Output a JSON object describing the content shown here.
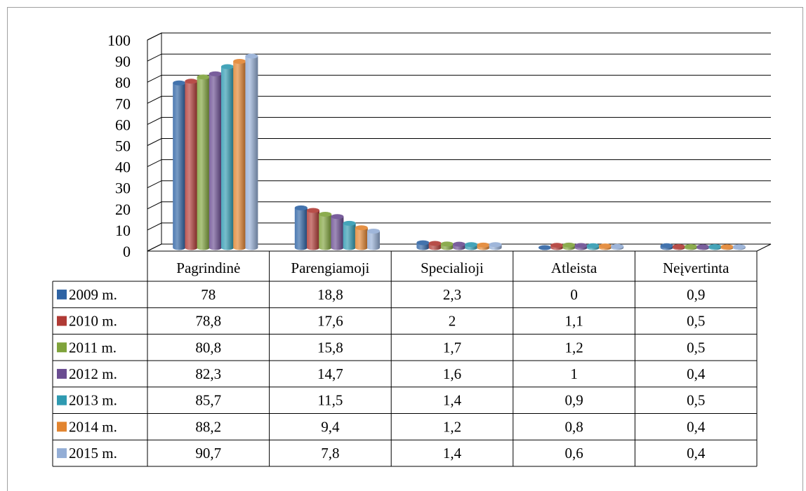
{
  "chart_data": {
    "type": "bar",
    "three_d": true,
    "categories": [
      "Pagrindinė",
      "Parengiamoji",
      "Specialioji",
      "Atleista",
      "Neįvertinta"
    ],
    "series": [
      {
        "name": "2009 m.",
        "color": "#2E63A4",
        "values": [
          "78",
          "18,8",
          "2,3",
          "0",
          "0,9"
        ]
      },
      {
        "name": "2010 m.",
        "color": "#B03A35",
        "values": [
          "78,8",
          "17,6",
          "2",
          "1,1",
          "0,5"
        ]
      },
      {
        "name": "2011 m.",
        "color": "#7FA33B",
        "values": [
          "80,8",
          "15,8",
          "1,7",
          "1,2",
          "0,5"
        ]
      },
      {
        "name": "2012 m.",
        "color": "#6A4C91",
        "values": [
          "82,3",
          "14,7",
          "1,6",
          "1",
          "0,4"
        ]
      },
      {
        "name": "2013 m.",
        "color": "#2F9AB1",
        "values": [
          "85,7",
          "11,5",
          "1,4",
          "0,9",
          "0,5"
        ]
      },
      {
        "name": "2014 m.",
        "color": "#E2842F",
        "values": [
          "88,2",
          "9,4",
          "1,2",
          "0,8",
          "0,4"
        ]
      },
      {
        "name": "2015 m.",
        "color": "#94AED6",
        "values": [
          "90,7",
          "7,8",
          "1,4",
          "0,6",
          "0,4"
        ]
      }
    ],
    "yticks": [
      "0",
      "10",
      "20",
      "30",
      "40",
      "50",
      "60",
      "70",
      "80",
      "90",
      "100"
    ],
    "ylim": [
      0,
      100
    ],
    "grid": true,
    "data_table": true,
    "legend": "data-table-left"
  }
}
